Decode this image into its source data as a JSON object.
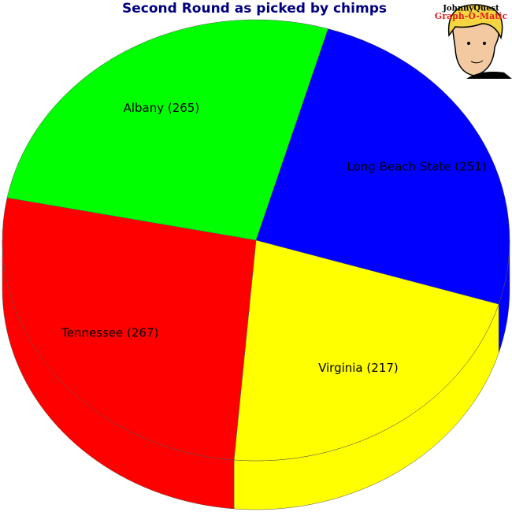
{
  "chart_data": {
    "type": "pie3d",
    "title": "Second Round as picked by chimps",
    "values": [
      251,
      217,
      267,
      265
    ],
    "value_labels": [
      "Long Beach State (251)",
      "Virginia (217)",
      "Tennessee (267)",
      "Albany (265)"
    ],
    "colors": [
      "#0000ff",
      "#ffff00",
      "#ff0000",
      "#00ff00"
    ]
  },
  "logo": {
    "line1": "JohnnyQuest",
    "line2": "Graph-O-Matic"
  }
}
